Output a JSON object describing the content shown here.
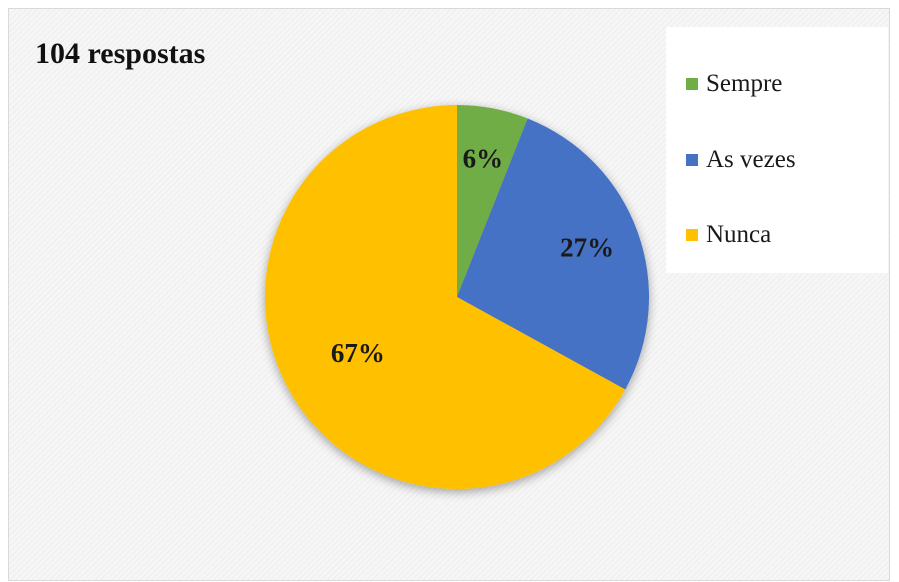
{
  "chart_data": {
    "type": "pie",
    "title": "104 respostas",
    "categories": [
      "Sempre",
      "As vezes",
      "Nunca"
    ],
    "values": [
      6,
      27,
      67
    ],
    "labels": [
      "6%",
      "27%",
      "67%"
    ],
    "colors": [
      "#70ad47",
      "#4472c4",
      "#ffc000"
    ],
    "legend_position": "top-right"
  }
}
